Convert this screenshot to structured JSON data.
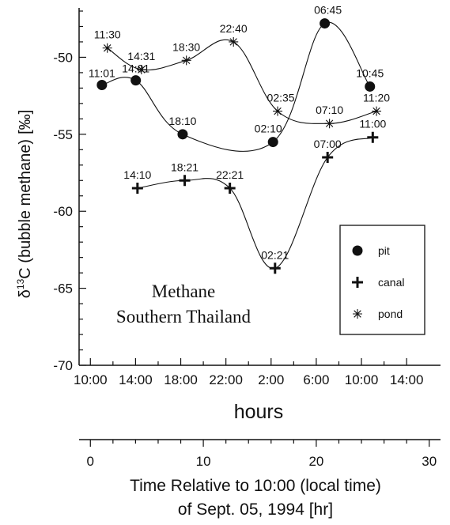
{
  "chart_data": {
    "type": "line",
    "ylabel_delta": "δ",
    "ylabel_sup": "13",
    "ylabel_rest": "C (bubble methane)",
    "ylabel_unit": "[‰]",
    "xlabel": "hours",
    "ylim": [
      -70,
      -47
    ],
    "yticks": [
      -50,
      -55,
      -60,
      -65,
      -70
    ],
    "xlim_hours": [
      -1,
      31
    ],
    "xtick_labels": [
      "10:00",
      "14:00",
      "18:00",
      "22:00",
      "2:00",
      "6:00",
      "10:00",
      "14:00"
    ],
    "xticks_hours": [
      0,
      4,
      8,
      12,
      16,
      20,
      24,
      28
    ],
    "secondary_axis": {
      "title_line1": "Time Relative to 10:00 (local time)",
      "title_line2": "of Sept. 05, 1994 [hr]",
      "ticks": [
        0,
        10,
        20,
        30
      ],
      "tick_labels": [
        "0",
        "10",
        "20",
        "30"
      ]
    },
    "annotation": [
      "Methane",
      "Southern Thailand"
    ],
    "legend_position": "right",
    "series": [
      {
        "name": "pit",
        "marker": "circle",
        "x": [
          1.02,
          4.02,
          8.17,
          16.17,
          20.75,
          24.75
        ],
        "y": [
          -51.8,
          -51.5,
          -55.0,
          -55.5,
          -47.8,
          -51.9
        ],
        "labels": [
          "11:01",
          "14:01",
          "18:10",
          "02:10",
          "06:45",
          "10:45"
        ]
      },
      {
        "name": "canal",
        "marker": "plus",
        "x": [
          4.17,
          8.35,
          12.35,
          16.35,
          21.0,
          25.0
        ],
        "y": [
          -58.5,
          -58.0,
          -58.5,
          -63.7,
          -56.5,
          -55.2
        ],
        "labels": [
          "14:10",
          "18:21",
          "22:21",
          "02:21",
          "07:00",
          "11:00"
        ]
      },
      {
        "name": "pond",
        "marker": "asterisk",
        "x": [
          1.5,
          4.52,
          8.5,
          12.67,
          16.58,
          21.17,
          25.33
        ],
        "y": [
          -49.4,
          -50.8,
          -50.2,
          -49.0,
          -53.5,
          -54.3,
          -53.5
        ],
        "labels": [
          "11:30",
          "14:31",
          "18:30",
          "22:40",
          "02:35",
          "07:10",
          "11:20"
        ]
      }
    ]
  }
}
